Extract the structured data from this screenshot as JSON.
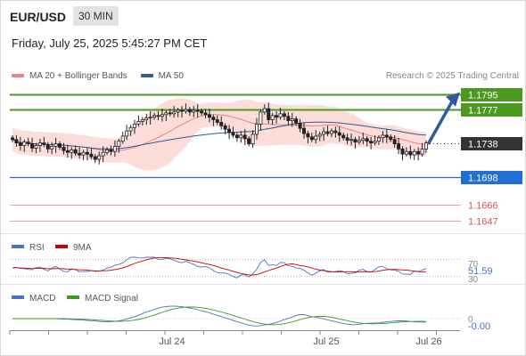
{
  "header": {
    "symbol": "EUR/USD",
    "timeframe": "30 MIN",
    "datetime": "Friday, July 25, 2025 5:45:27 PM CET"
  },
  "legend": {
    "items": [
      {
        "label": "MA 20 + Bollinger Bands",
        "color": "#f08080"
      },
      {
        "label": "MA 50",
        "color": "#2c5b9e"
      }
    ],
    "credit": "Research © 2025 Trading Central"
  },
  "chart_data": [
    {
      "type": "candlestick",
      "panel": "price",
      "price_range": [
        1.1637,
        1.1805
      ],
      "levels": [
        {
          "value": 1.1795,
          "label": "1.1795",
          "kind": "resistance",
          "color": "#4b9a1e"
        },
        {
          "value": 1.1777,
          "label": "1.1777",
          "kind": "resistance",
          "color": "#4b9a1e"
        },
        {
          "value": 1.1738,
          "label": "1.1738",
          "kind": "last",
          "color": "#333333"
        },
        {
          "value": 1.1698,
          "label": "1.1698",
          "kind": "pivot",
          "color": "#1f6fd6"
        },
        {
          "value": 1.1666,
          "label": "1.1666",
          "kind": "support",
          "color": "#e05050"
        },
        {
          "value": 1.1647,
          "label": "1.1647",
          "kind": "support",
          "color": "#e05050"
        }
      ],
      "arrow": {
        "from": 1.1738,
        "to": 1.1795,
        "direction": "up",
        "color": "#2c5b9e"
      },
      "close": [
        1.1742,
        1.1738,
        1.1735,
        1.1739,
        1.1737,
        1.1732,
        1.1735,
        1.1738,
        1.1736,
        1.1731,
        1.1734,
        1.1737,
        1.1733,
        1.1729,
        1.1727,
        1.173,
        1.1726,
        1.1724,
        1.1727,
        1.1725,
        1.1722,
        1.1719,
        1.1723,
        1.1727,
        1.173,
        1.1728,
        1.1734,
        1.174,
        1.1746,
        1.1752,
        1.1756,
        1.176,
        1.1763,
        1.1765,
        1.1767,
        1.1768,
        1.177,
        1.1769,
        1.1771,
        1.1773,
        1.1772,
        1.1774,
        1.1776,
        1.1775,
        1.1777,
        1.1774,
        1.1776,
        1.1775,
        1.1773,
        1.1771,
        1.1768,
        1.1765,
        1.1762,
        1.1758,
        1.1754,
        1.175,
        1.1747,
        1.1744,
        1.1747,
        1.1743,
        1.1737,
        1.1748,
        1.176,
        1.1774,
        1.1778,
        1.1765,
        1.177,
        1.1768,
        1.1772,
        1.1769,
        1.1764,
        1.1766,
        1.1761,
        1.1755,
        1.1749,
        1.1745,
        1.1742,
        1.1746,
        1.1748,
        1.1751,
        1.1749,
        1.1752,
        1.175,
        1.1747,
        1.1744,
        1.1741,
        1.1742,
        1.1739,
        1.1741,
        1.1743,
        1.174,
        1.1738,
        1.174,
        1.1744,
        1.1747,
        1.1745,
        1.1742,
        1.1737,
        1.1731,
        1.1725,
        1.1728,
        1.1724,
        1.1728,
        1.1725,
        1.1731,
        1.1738
      ],
      "open_first": 1.1744,
      "x_ticks": [
        "Jul 24",
        "Jul 25",
        "Jul 26"
      ]
    },
    {
      "type": "line",
      "panel": "RSI",
      "series": [
        {
          "name": "RSI",
          "color": "#4a73c8"
        },
        {
          "name": "9MA",
          "color": "#cc0000"
        }
      ],
      "y_ticks": [
        70,
        30
      ],
      "last_value": "51.59"
    },
    {
      "type": "line",
      "panel": "MACD",
      "series": [
        {
          "name": "MACD",
          "color": "#4a73c8"
        },
        {
          "name": "MACD Signal",
          "color": "#3a9a22"
        }
      ],
      "y_ticks": [
        0
      ],
      "last_value": "-0.00"
    }
  ]
}
